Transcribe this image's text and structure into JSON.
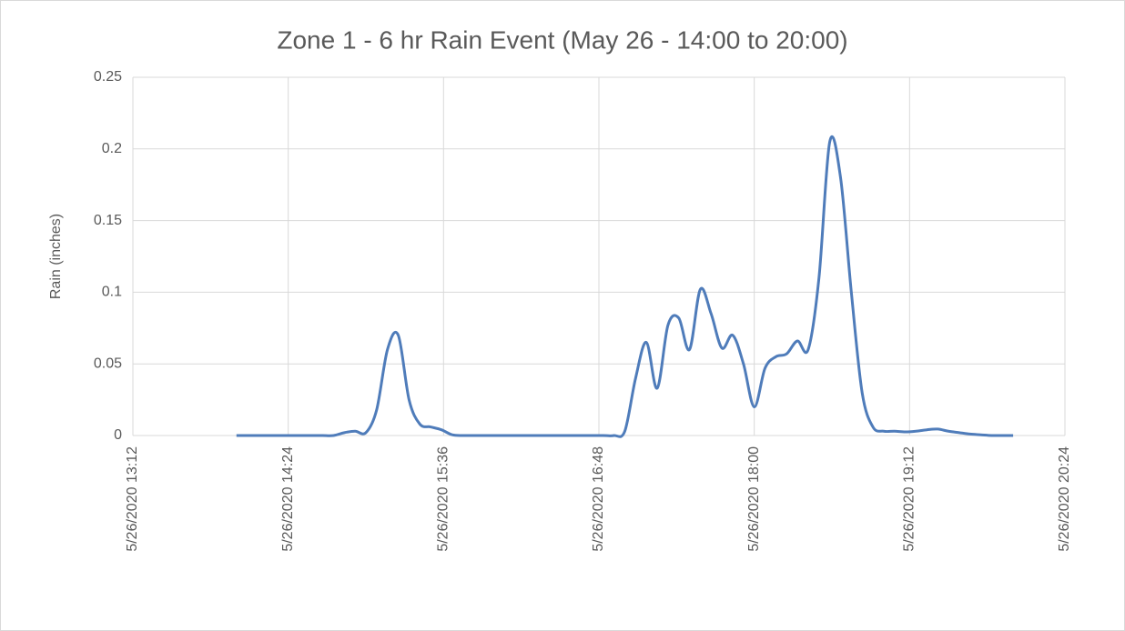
{
  "chart_data": {
    "type": "line",
    "title": "Zone 1 - 6 hr Rain Event (May 26 - 14:00 to 20:00)",
    "y_label": "Rain (inches)",
    "x": [
      "5/26/2020 14:00",
      "5/26/2020 14:05",
      "5/26/2020 14:10",
      "5/26/2020 14:15",
      "5/26/2020 14:20",
      "5/26/2020 14:25",
      "5/26/2020 14:30",
      "5/26/2020 14:35",
      "5/26/2020 14:40",
      "5/26/2020 14:45",
      "5/26/2020 14:50",
      "5/26/2020 14:55",
      "5/26/2020 15:00",
      "5/26/2020 15:05",
      "5/26/2020 15:10",
      "5/26/2020 15:15",
      "5/26/2020 15:20",
      "5/26/2020 15:25",
      "5/26/2020 15:30",
      "5/26/2020 15:35",
      "5/26/2020 15:40",
      "5/26/2020 15:45",
      "5/26/2020 15:50",
      "5/26/2020 15:55",
      "5/26/2020 16:00",
      "5/26/2020 16:05",
      "5/26/2020 16:10",
      "5/26/2020 16:15",
      "5/26/2020 16:20",
      "5/26/2020 16:25",
      "5/26/2020 16:30",
      "5/26/2020 16:35",
      "5/26/2020 16:40",
      "5/26/2020 16:45",
      "5/26/2020 16:50",
      "5/26/2020 16:55",
      "5/26/2020 17:00",
      "5/26/2020 17:05",
      "5/26/2020 17:10",
      "5/26/2020 17:15",
      "5/26/2020 17:20",
      "5/26/2020 17:25",
      "5/26/2020 17:30",
      "5/26/2020 17:35",
      "5/26/2020 17:40",
      "5/26/2020 17:45",
      "5/26/2020 17:50",
      "5/26/2020 17:55",
      "5/26/2020 18:00",
      "5/26/2020 18:05",
      "5/26/2020 18:10",
      "5/26/2020 18:15",
      "5/26/2020 18:20",
      "5/26/2020 18:25",
      "5/26/2020 18:30",
      "5/26/2020 18:35",
      "5/26/2020 18:40",
      "5/26/2020 18:45",
      "5/26/2020 18:50",
      "5/26/2020 18:55",
      "5/26/2020 19:00",
      "5/26/2020 19:05",
      "5/26/2020 19:10",
      "5/26/2020 19:15",
      "5/26/2020 19:20",
      "5/26/2020 19:25",
      "5/26/2020 19:30",
      "5/26/2020 19:35",
      "5/26/2020 19:40",
      "5/26/2020 19:45",
      "5/26/2020 19:50",
      "5/26/2020 19:55",
      "5/26/2020 20:00"
    ],
    "series": [
      {
        "name": "Rain",
        "color": "#4f7cba",
        "values": [
          0,
          0,
          0,
          0,
          0,
          0,
          0,
          0,
          0,
          0,
          0.002,
          0.003,
          0.002,
          0.018,
          0.06,
          0.07,
          0.025,
          0.008,
          0.006,
          0.004,
          0.0005,
          0,
          0,
          0,
          0,
          0,
          0,
          0,
          0,
          0,
          0,
          0,
          0,
          0,
          0,
          0,
          0.003,
          0.04,
          0.065,
          0.033,
          0.077,
          0.082,
          0.06,
          0.102,
          0.085,
          0.061,
          0.07,
          0.05,
          0.02,
          0.047,
          0.055,
          0.057,
          0.066,
          0.06,
          0.11,
          0.205,
          0.18,
          0.1,
          0.03,
          0.006,
          0.003,
          0.003,
          0.0025,
          0.003,
          0.004,
          0.0045,
          0.003,
          0.002,
          0.001,
          0.0005,
          0,
          0,
          0
        ]
      }
    ],
    "xlim": [
      "5/26/2020 13:12",
      "5/26/2020 20:24"
    ],
    "xticks": [
      "5/26/2020 13:12",
      "5/26/2020 14:24",
      "5/26/2020 15:36",
      "5/26/2020 16:48",
      "5/26/2020 18:00",
      "5/26/2020 19:12",
      "5/26/2020 20:24"
    ],
    "ylim": [
      0,
      0.25
    ],
    "yticks": [
      0,
      0.05,
      0.1,
      0.15,
      0.2,
      0.25
    ],
    "grid": true
  }
}
